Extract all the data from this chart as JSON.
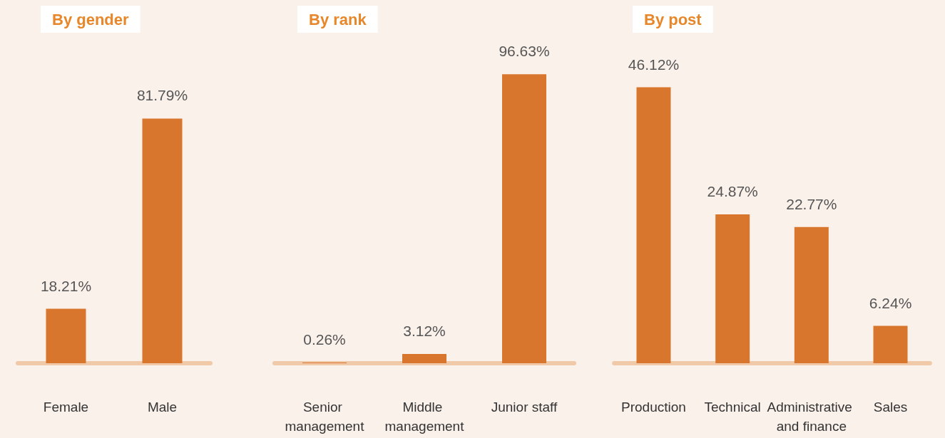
{
  "chart_data": [
    {
      "type": "bar",
      "title": "By gender",
      "categories": [
        "Female",
        "Male"
      ],
      "values": [
        18.21,
        81.79
      ],
      "color": "#d9762e",
      "data_labels": true,
      "value_labels": [
        "18.21%",
        "81.79%"
      ]
    },
    {
      "type": "bar",
      "title": "By rank",
      "categories": [
        "Senior management",
        "Middle management",
        "Junior staff"
      ],
      "values": [
        0.26,
        3.12,
        96.63
      ],
      "color": "#d9762e",
      "data_labels": true,
      "value_labels": [
        "0.26%",
        "3.12%",
        "96.63%"
      ]
    },
    {
      "type": "bar",
      "title": "By post",
      "categories": [
        "Production",
        "Technical",
        "Administrative and finance",
        "Sales"
      ],
      "values": [
        46.12,
        24.87,
        22.77,
        6.24
      ],
      "color": "#d9762e",
      "data_labels": true,
      "value_labels": [
        "46.12%",
        "24.87%",
        "22.77%",
        "6.24%"
      ]
    }
  ]
}
